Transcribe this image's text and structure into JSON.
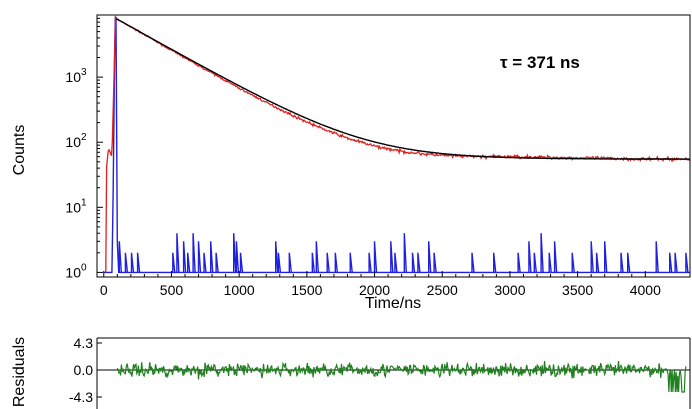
{
  "chart_data": [
    {
      "type": "line",
      "panel": "decay",
      "ylabel": "Counts",
      "xlabel": "Time/ns",
      "yscale": "log",
      "xlim": [
        -50,
        4330
      ],
      "ylim": [
        0.85,
        9000
      ],
      "xticks": [
        "0",
        "500",
        "1000",
        "1500",
        "2000",
        "2500",
        "3000",
        "3500",
        "4000"
      ],
      "yticks": [
        {
          "base": "10",
          "exp": "0",
          "value": 1
        },
        {
          "base": "10",
          "exp": "1",
          "value": 10
        },
        {
          "base": "10",
          "exp": "2",
          "value": 100
        },
        {
          "base": "10",
          "exp": "3",
          "value": 1000
        }
      ],
      "annotation": "τ = 371 ns",
      "grid": false,
      "series": [
        {
          "role": "measured-decay",
          "color": "#e02020",
          "x": [
            15,
            20,
            35,
            60,
            80,
            85,
            90,
            100,
            200,
            400,
            600,
            800,
            1000,
            1200,
            1400,
            1600,
            1800,
            2000,
            2200,
            2400,
            2600,
            2800,
            3000,
            3200,
            3400,
            3600,
            3800,
            4000,
            4200,
            4330
          ],
          "y": [
            1,
            40,
            80,
            60,
            2000,
            8500,
            8300,
            7700,
            5900,
            3400,
            1970,
            1150,
            676,
            408,
            254,
            166,
            115,
            87,
            72,
            65,
            61,
            60,
            60,
            59,
            58,
            57,
            56,
            55,
            55,
            55
          ]
        },
        {
          "role": "fit",
          "color": "#000000",
          "tau": 371,
          "amplitude": 7700,
          "offset": 55,
          "t0": 100,
          "xrange": [
            90,
            4330
          ]
        },
        {
          "role": "instrument-response",
          "color": "#2020e0",
          "x": [
            60,
            70,
            80,
            85,
            90,
            95,
            100,
            110,
            120
          ],
          "y": [
            1,
            20,
            2000,
            8500,
            8000,
            200,
            3,
            1,
            1
          ],
          "noise_spikes_x": [
            115,
            160,
            205,
            250,
            510,
            540,
            590,
            620,
            660,
            700,
            740,
            790,
            830,
            960,
            980,
            1010,
            1270,
            1290,
            1370,
            1540,
            1570,
            1650,
            1710,
            1820,
            1960,
            2000,
            2120,
            2150,
            2220,
            2280,
            2320,
            2400,
            2440,
            2720,
            2880,
            3060,
            3140,
            3180,
            3230,
            3290,
            3330,
            3460,
            3600,
            3640,
            3700,
            3820,
            3870,
            4080,
            4180,
            4220,
            4300
          ],
          "noise_spikes_y": [
            3,
            2,
            2,
            2,
            2,
            4,
            3,
            2,
            4,
            3,
            2,
            3,
            2,
            4,
            3,
            2,
            3,
            2,
            2,
            2,
            3,
            2,
            2,
            2,
            2,
            3,
            3,
            2,
            4,
            2,
            2,
            3,
            2,
            2,
            2,
            2,
            3,
            2,
            4,
            2,
            3,
            2,
            3,
            2,
            3,
            2,
            2,
            3,
            2,
            2,
            2
          ]
        }
      ]
    },
    {
      "type": "line",
      "panel": "residuals",
      "ylabel": "Residuals",
      "yticks": [
        "4.3",
        "0.0",
        "-4.3"
      ],
      "ylim": [
        -4.3,
        4.3
      ],
      "xlim": [
        -50,
        4330
      ],
      "series": [
        {
          "role": "residuals",
          "color": "#208020",
          "x_start": 100,
          "x_end": 4300,
          "amplitude": 1.3
        }
      ]
    }
  ]
}
